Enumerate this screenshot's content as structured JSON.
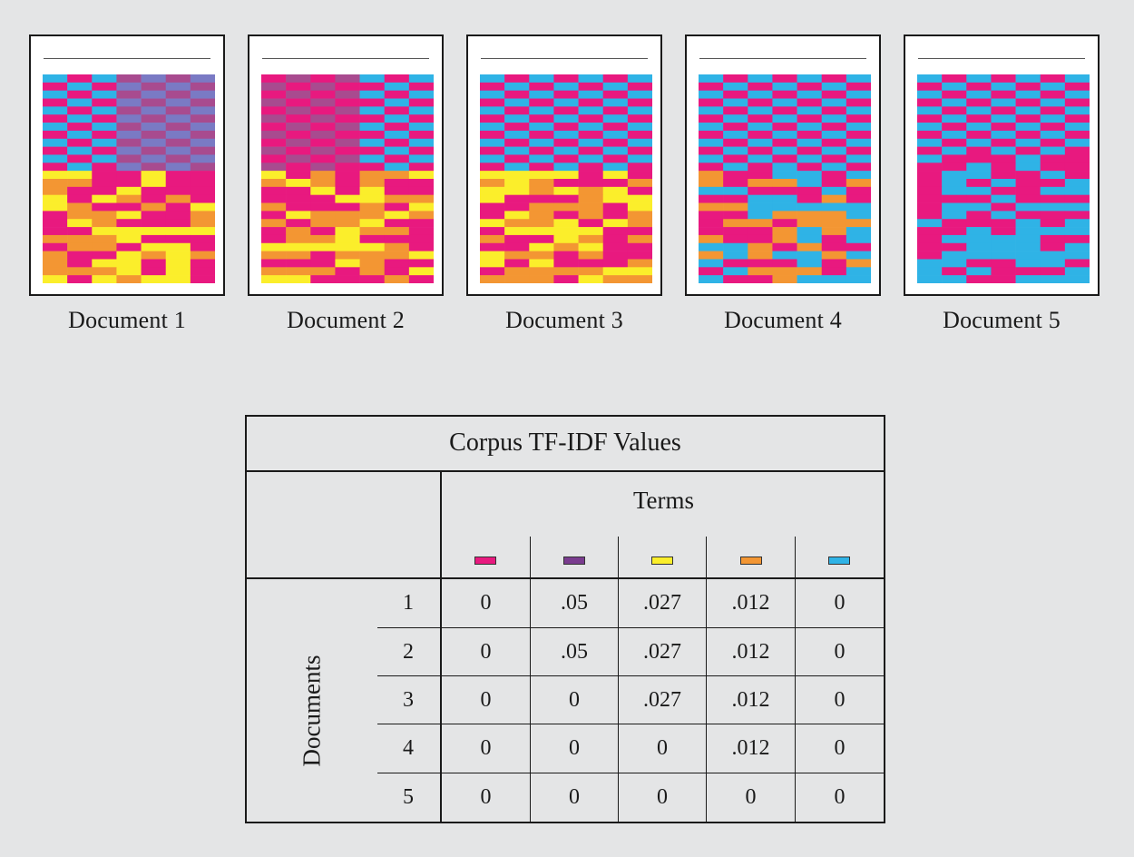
{
  "colors": {
    "magenta": "#e8197f",
    "purple": "#7a3c8f",
    "yellow": "#fbee2b",
    "orange": "#f39633",
    "cyan": "#2fb3e6",
    "magenta_purple": "#a84b8f",
    "cyan_purple": "#7a7ac4"
  },
  "documents": [
    {
      "label": "Document 1"
    },
    {
      "label": "Document 2"
    },
    {
      "label": "Document 3"
    },
    {
      "label": "Document 4"
    },
    {
      "label": "Document 5"
    }
  ],
  "table": {
    "caption": "Corpus TF-IDF Values",
    "column_header": "Terms",
    "row_header": "Documents",
    "term_swatches": [
      "magenta",
      "purple",
      "yellow",
      "orange",
      "cyan"
    ],
    "rows": [
      {
        "doc": "1",
        "values": [
          "0",
          ".05",
          ".027",
          ".012",
          "0"
        ]
      },
      {
        "doc": "2",
        "values": [
          "0",
          ".05",
          ".027",
          ".012",
          "0"
        ]
      },
      {
        "doc": "3",
        "values": [
          "0",
          "0",
          ".027",
          ".012",
          "0"
        ]
      },
      {
        "doc": "4",
        "values": [
          "0",
          "0",
          "0",
          ".012",
          "0"
        ]
      },
      {
        "doc": "5",
        "values": [
          "0",
          "0",
          "0",
          "0",
          "0"
        ]
      }
    ]
  }
}
